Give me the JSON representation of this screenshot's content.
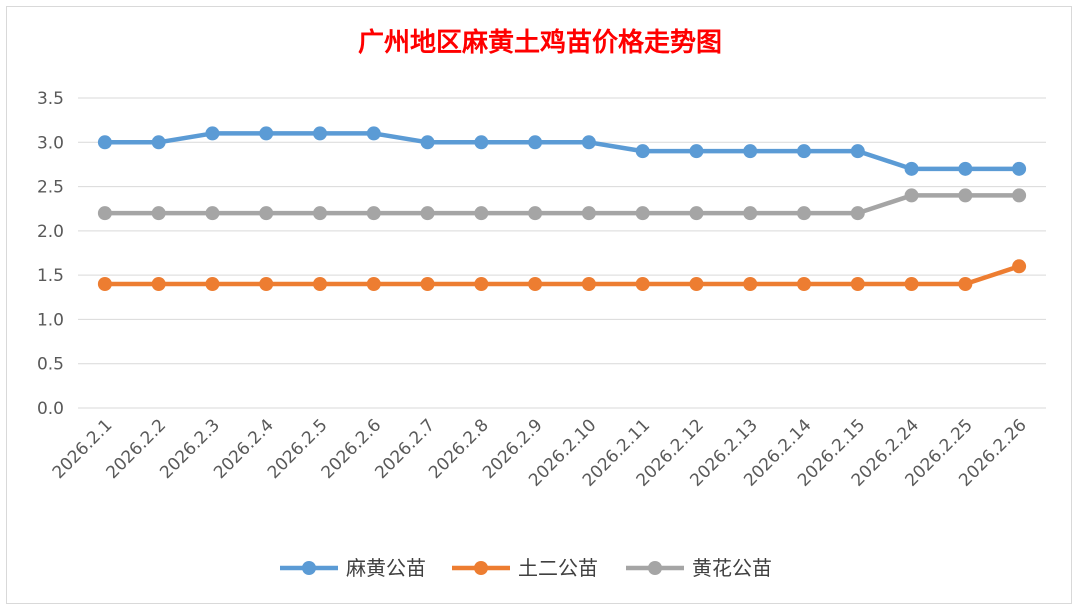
{
  "chart_data": {
    "type": "line",
    "title": "广州地区麻黄土鸡苗价格走势图",
    "title_color": "#ff0000",
    "xlabel": "",
    "ylabel": "",
    "ylim": [
      0,
      3.5
    ],
    "yticks": [
      "0.0",
      "0.5",
      "1.0",
      "1.5",
      "2.0",
      "2.5",
      "3.0",
      "3.5"
    ],
    "grid": true,
    "legend": "bottom",
    "categories": [
      "2026.2.1",
      "2026.2.2",
      "2026.2.3",
      "2026.2.4",
      "2026.2.5",
      "2026.2.6",
      "2026.2.7",
      "2026.2.8",
      "2026.2.9",
      "2026.2.10",
      "2026.2.11",
      "2026.2.12",
      "2026.2.13",
      "2026.2.14",
      "2026.2.15",
      "2026.2.24",
      "2026.2.25",
      "2026.2.26"
    ],
    "series": [
      {
        "name": "麻黄公苗",
        "color": "#5b9bd5",
        "values": [
          3.0,
          3.0,
          3.1,
          3.1,
          3.1,
          3.1,
          3.0,
          3.0,
          3.0,
          3.0,
          2.9,
          2.9,
          2.9,
          2.9,
          2.9,
          2.7,
          2.7,
          2.7
        ]
      },
      {
        "name": "土二公苗",
        "color": "#ed7d31",
        "values": [
          1.4,
          1.4,
          1.4,
          1.4,
          1.4,
          1.4,
          1.4,
          1.4,
          1.4,
          1.4,
          1.4,
          1.4,
          1.4,
          1.4,
          1.4,
          1.4,
          1.4,
          1.6
        ]
      },
      {
        "name": "黄花公苗",
        "color": "#a5a5a5",
        "values": [
          2.2,
          2.2,
          2.2,
          2.2,
          2.2,
          2.2,
          2.2,
          2.2,
          2.2,
          2.2,
          2.2,
          2.2,
          2.2,
          2.2,
          2.2,
          2.4,
          2.4,
          2.4
        ]
      }
    ]
  }
}
